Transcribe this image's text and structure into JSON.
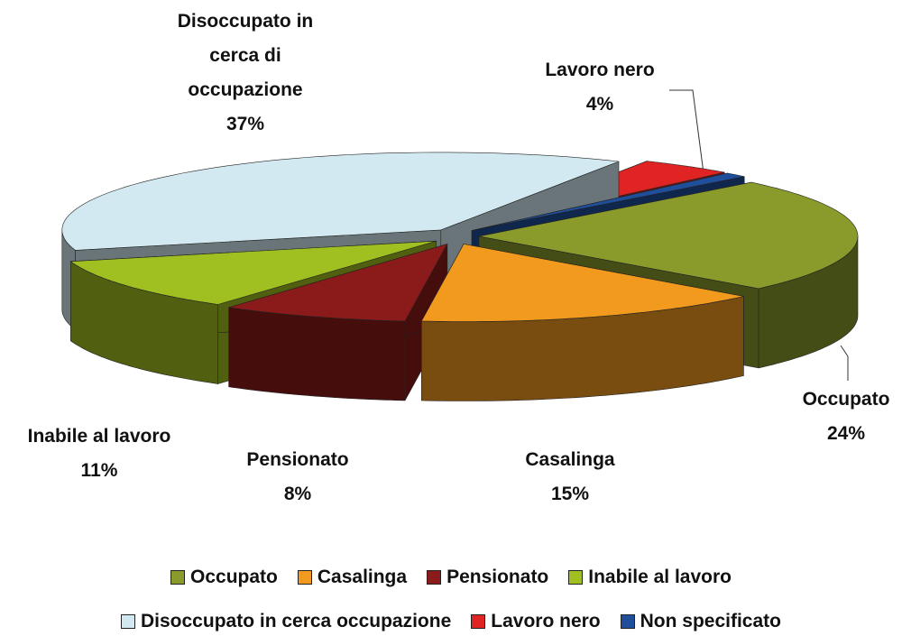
{
  "chart_data": {
    "type": "pie3d",
    "categories": [
      "Occupato",
      "Casalinga",
      "Pensionato",
      "Inabile al lavoro",
      "Disoccupato in cerca occupazione",
      "Lavoro nero",
      "Non specificato"
    ],
    "slice_labels": [
      "Occupato",
      "Casalinga",
      "Pensionato",
      "Inabile al lavoro",
      "Disoccupato in cerca di occupazione",
      "Lavoro nero",
      null
    ],
    "values": [
      24,
      15,
      8,
      11,
      37,
      4,
      1
    ],
    "value_labels": [
      "24%",
      "15%",
      "8%",
      "11%",
      "37%",
      "4%",
      null
    ],
    "colors": [
      "#8a9a2b",
      "#f29a1e",
      "#8b1a1a",
      "#9fc020",
      "#d2e9f1",
      "#e02424",
      "#1f4e9a"
    ],
    "legend": "bottom"
  }
}
